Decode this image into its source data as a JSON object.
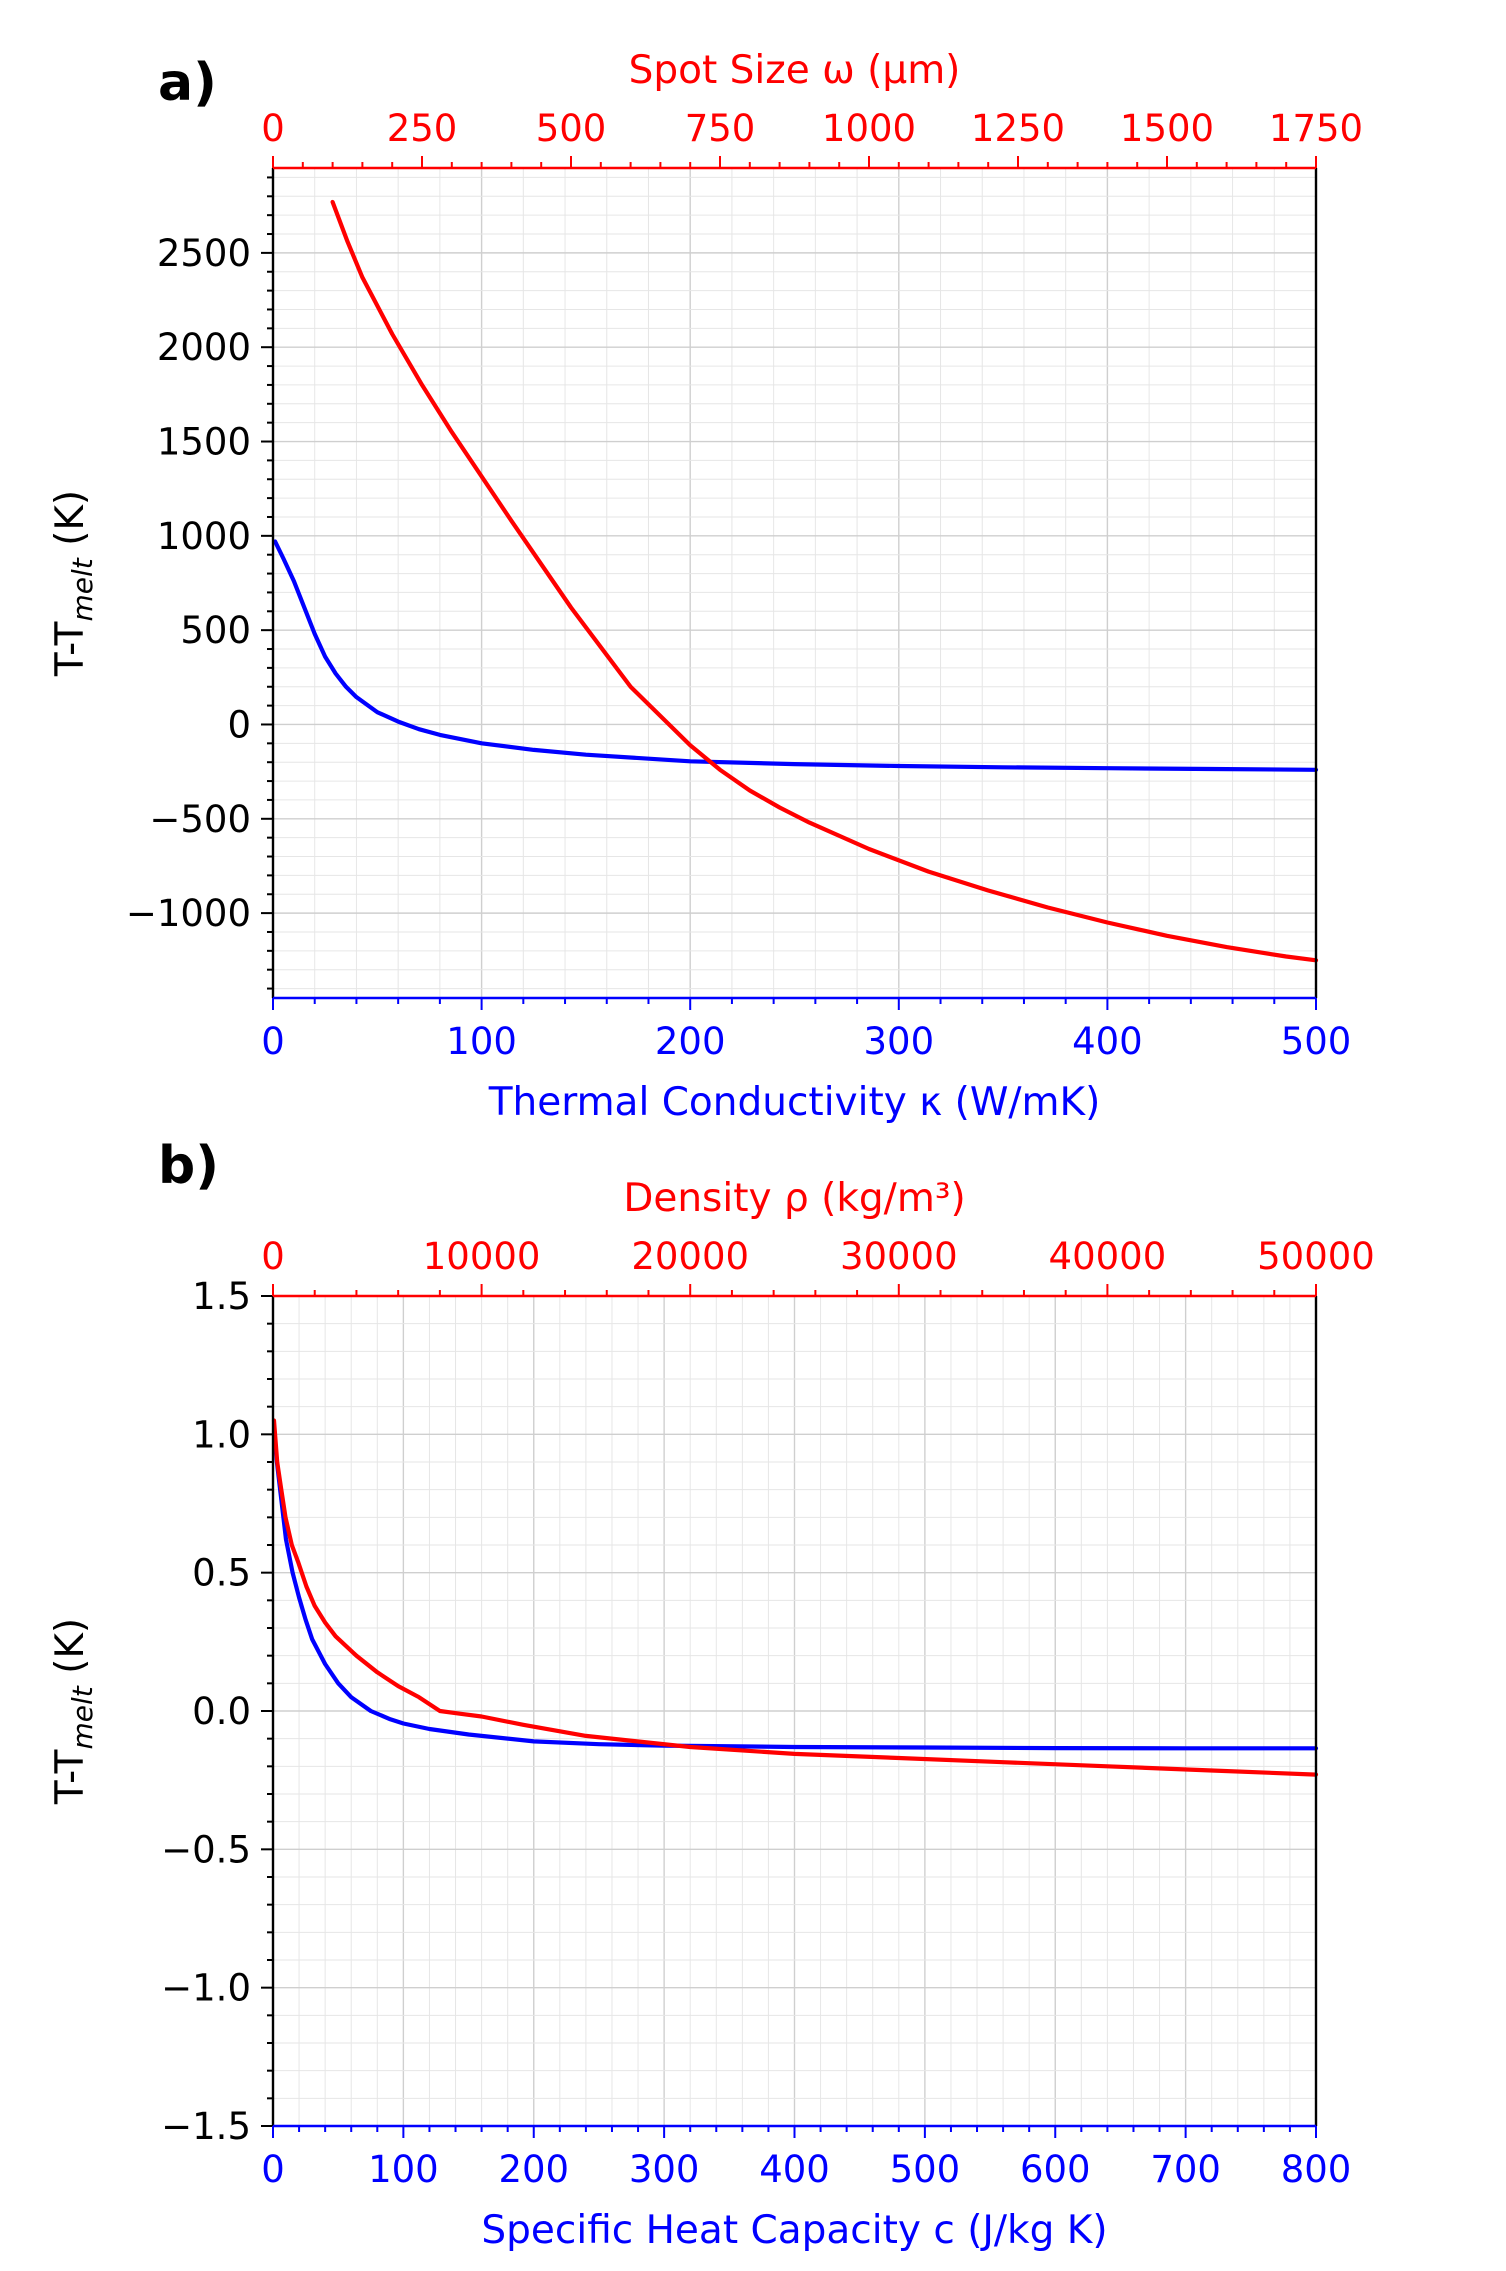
{
  "colors": {
    "bottom_axis": "#0000ff",
    "top_axis": "#ff0000",
    "left_axis": "#000000",
    "grid": "#d9d9d9"
  },
  "chart_data": [
    {
      "panel_label": "a)",
      "type": "line",
      "grid": true,
      "ylabel": "T-T",
      "ylabel_subscript": "melt",
      "ylabel_unit": " (K)",
      "ylim": [
        -1450,
        2950
      ],
      "yticks": [
        2500,
        2000,
        1500,
        1000,
        500,
        0,
        -500,
        -1000
      ],
      "ytick_labels": [
        "2500",
        "2000",
        "1500",
        "1000",
        "500",
        "0",
        "−500",
        "−1000"
      ],
      "x_bottom": {
        "label": "Thermal Conductivity κ (W/mK)",
        "lim": [
          0,
          500
        ],
        "ticks": [
          0,
          100,
          200,
          300,
          400,
          500
        ],
        "tick_labels": [
          "0",
          "100",
          "200",
          "300",
          "400",
          "500"
        ]
      },
      "x_top": {
        "label": "Spot Size ω (μm)",
        "lim": [
          0,
          1750
        ],
        "ticks": [
          0,
          250,
          500,
          750,
          1000,
          1250,
          1500,
          1750
        ],
        "tick_labels": [
          "0",
          "250",
          "500",
          "750",
          "1000",
          "1250",
          "1500",
          "1750"
        ]
      },
      "series": [
        {
          "axis": "bottom",
          "color": "#0000ff",
          "x": [
            1,
            5,
            10,
            15,
            20,
            25,
            30,
            35,
            40,
            50,
            60,
            70,
            80,
            100,
            125,
            150,
            200,
            250,
            300,
            350,
            400,
            450,
            500
          ],
          "y": [
            970,
            880,
            760,
            620,
            480,
            360,
            270,
            200,
            145,
            65,
            15,
            -25,
            -55,
            -100,
            -135,
            -160,
            -195,
            -210,
            -220,
            -227,
            -232,
            -236,
            -240
          ]
        },
        {
          "axis": "top",
          "color": "#ff0000",
          "x": [
            100,
            125,
            150,
            200,
            250,
            300,
            400,
            500,
            600,
            700,
            750,
            800,
            850,
            900,
            1000,
            1100,
            1200,
            1300,
            1400,
            1500,
            1600,
            1700,
            1750
          ],
          "y": [
            2770,
            2560,
            2370,
            2070,
            1800,
            1550,
            1080,
            620,
            200,
            -110,
            -240,
            -350,
            -440,
            -520,
            -660,
            -780,
            -880,
            -970,
            -1050,
            -1120,
            -1180,
            -1230,
            -1250
          ]
        }
      ]
    },
    {
      "panel_label": "b)",
      "type": "line",
      "grid": true,
      "ylabel": "T-T",
      "ylabel_subscript": "melt",
      "ylabel_unit": " (K)",
      "ylim": [
        -1.5,
        1.5
      ],
      "yticks": [
        1.5,
        1.0,
        0.5,
        0.0,
        -0.5,
        -1.0,
        -1.5
      ],
      "ytick_labels": [
        "1.5",
        "1.0",
        "0.5",
        "0.0",
        "−0.5",
        "−1.0",
        "−1.5"
      ],
      "x_bottom": {
        "label": "Specific Heat Capacity c (J/kg K)",
        "lim": [
          0,
          800
        ],
        "ticks": [
          0,
          100,
          200,
          300,
          400,
          500,
          600,
          700,
          800
        ],
        "tick_labels": [
          "0",
          "100",
          "200",
          "300",
          "400",
          "500",
          "600",
          "700",
          "800"
        ]
      },
      "x_top": {
        "label": "Density ρ (kg/m³)",
        "lim": [
          0,
          50000
        ],
        "ticks": [
          0,
          10000,
          20000,
          30000,
          40000,
          50000
        ],
        "tick_labels": [
          "0",
          "10000",
          "20000",
          "30000",
          "40000",
          "50000"
        ]
      },
      "series": [
        {
          "axis": "bottom",
          "color": "#0000ff",
          "x": [
            1,
            3,
            6,
            10,
            15,
            20,
            25,
            30,
            40,
            50,
            60,
            75,
            90,
            100,
            120,
            150,
            200,
            250,
            300,
            400,
            500,
            600,
            700,
            800
          ],
          "y": [
            1.0,
            0.9,
            0.78,
            0.62,
            0.5,
            0.41,
            0.33,
            0.26,
            0.17,
            0.1,
            0.05,
            0.0,
            -0.03,
            -0.045,
            -0.065,
            -0.085,
            -0.11,
            -0.12,
            -0.125,
            -0.13,
            -0.132,
            -0.134,
            -0.135,
            -0.135
          ]
        },
        {
          "axis": "top",
          "color": "#ff0000",
          "x": [
            50,
            200,
            400,
            600,
            900,
            1200,
            1600,
            2000,
            2500,
            3000,
            4000,
            5000,
            6000,
            7000,
            8000,
            9000,
            10000,
            12000,
            15000,
            20000,
            25000,
            30000,
            35000,
            40000,
            45000,
            50000
          ],
          "y": [
            1.05,
            0.9,
            0.8,
            0.7,
            0.6,
            0.54,
            0.45,
            0.38,
            0.32,
            0.27,
            0.2,
            0.14,
            0.09,
            0.05,
            0.0,
            -0.01,
            -0.02,
            -0.05,
            -0.09,
            -0.13,
            -0.155,
            -0.17,
            -0.185,
            -0.2,
            -0.215,
            -0.23
          ]
        }
      ]
    }
  ]
}
